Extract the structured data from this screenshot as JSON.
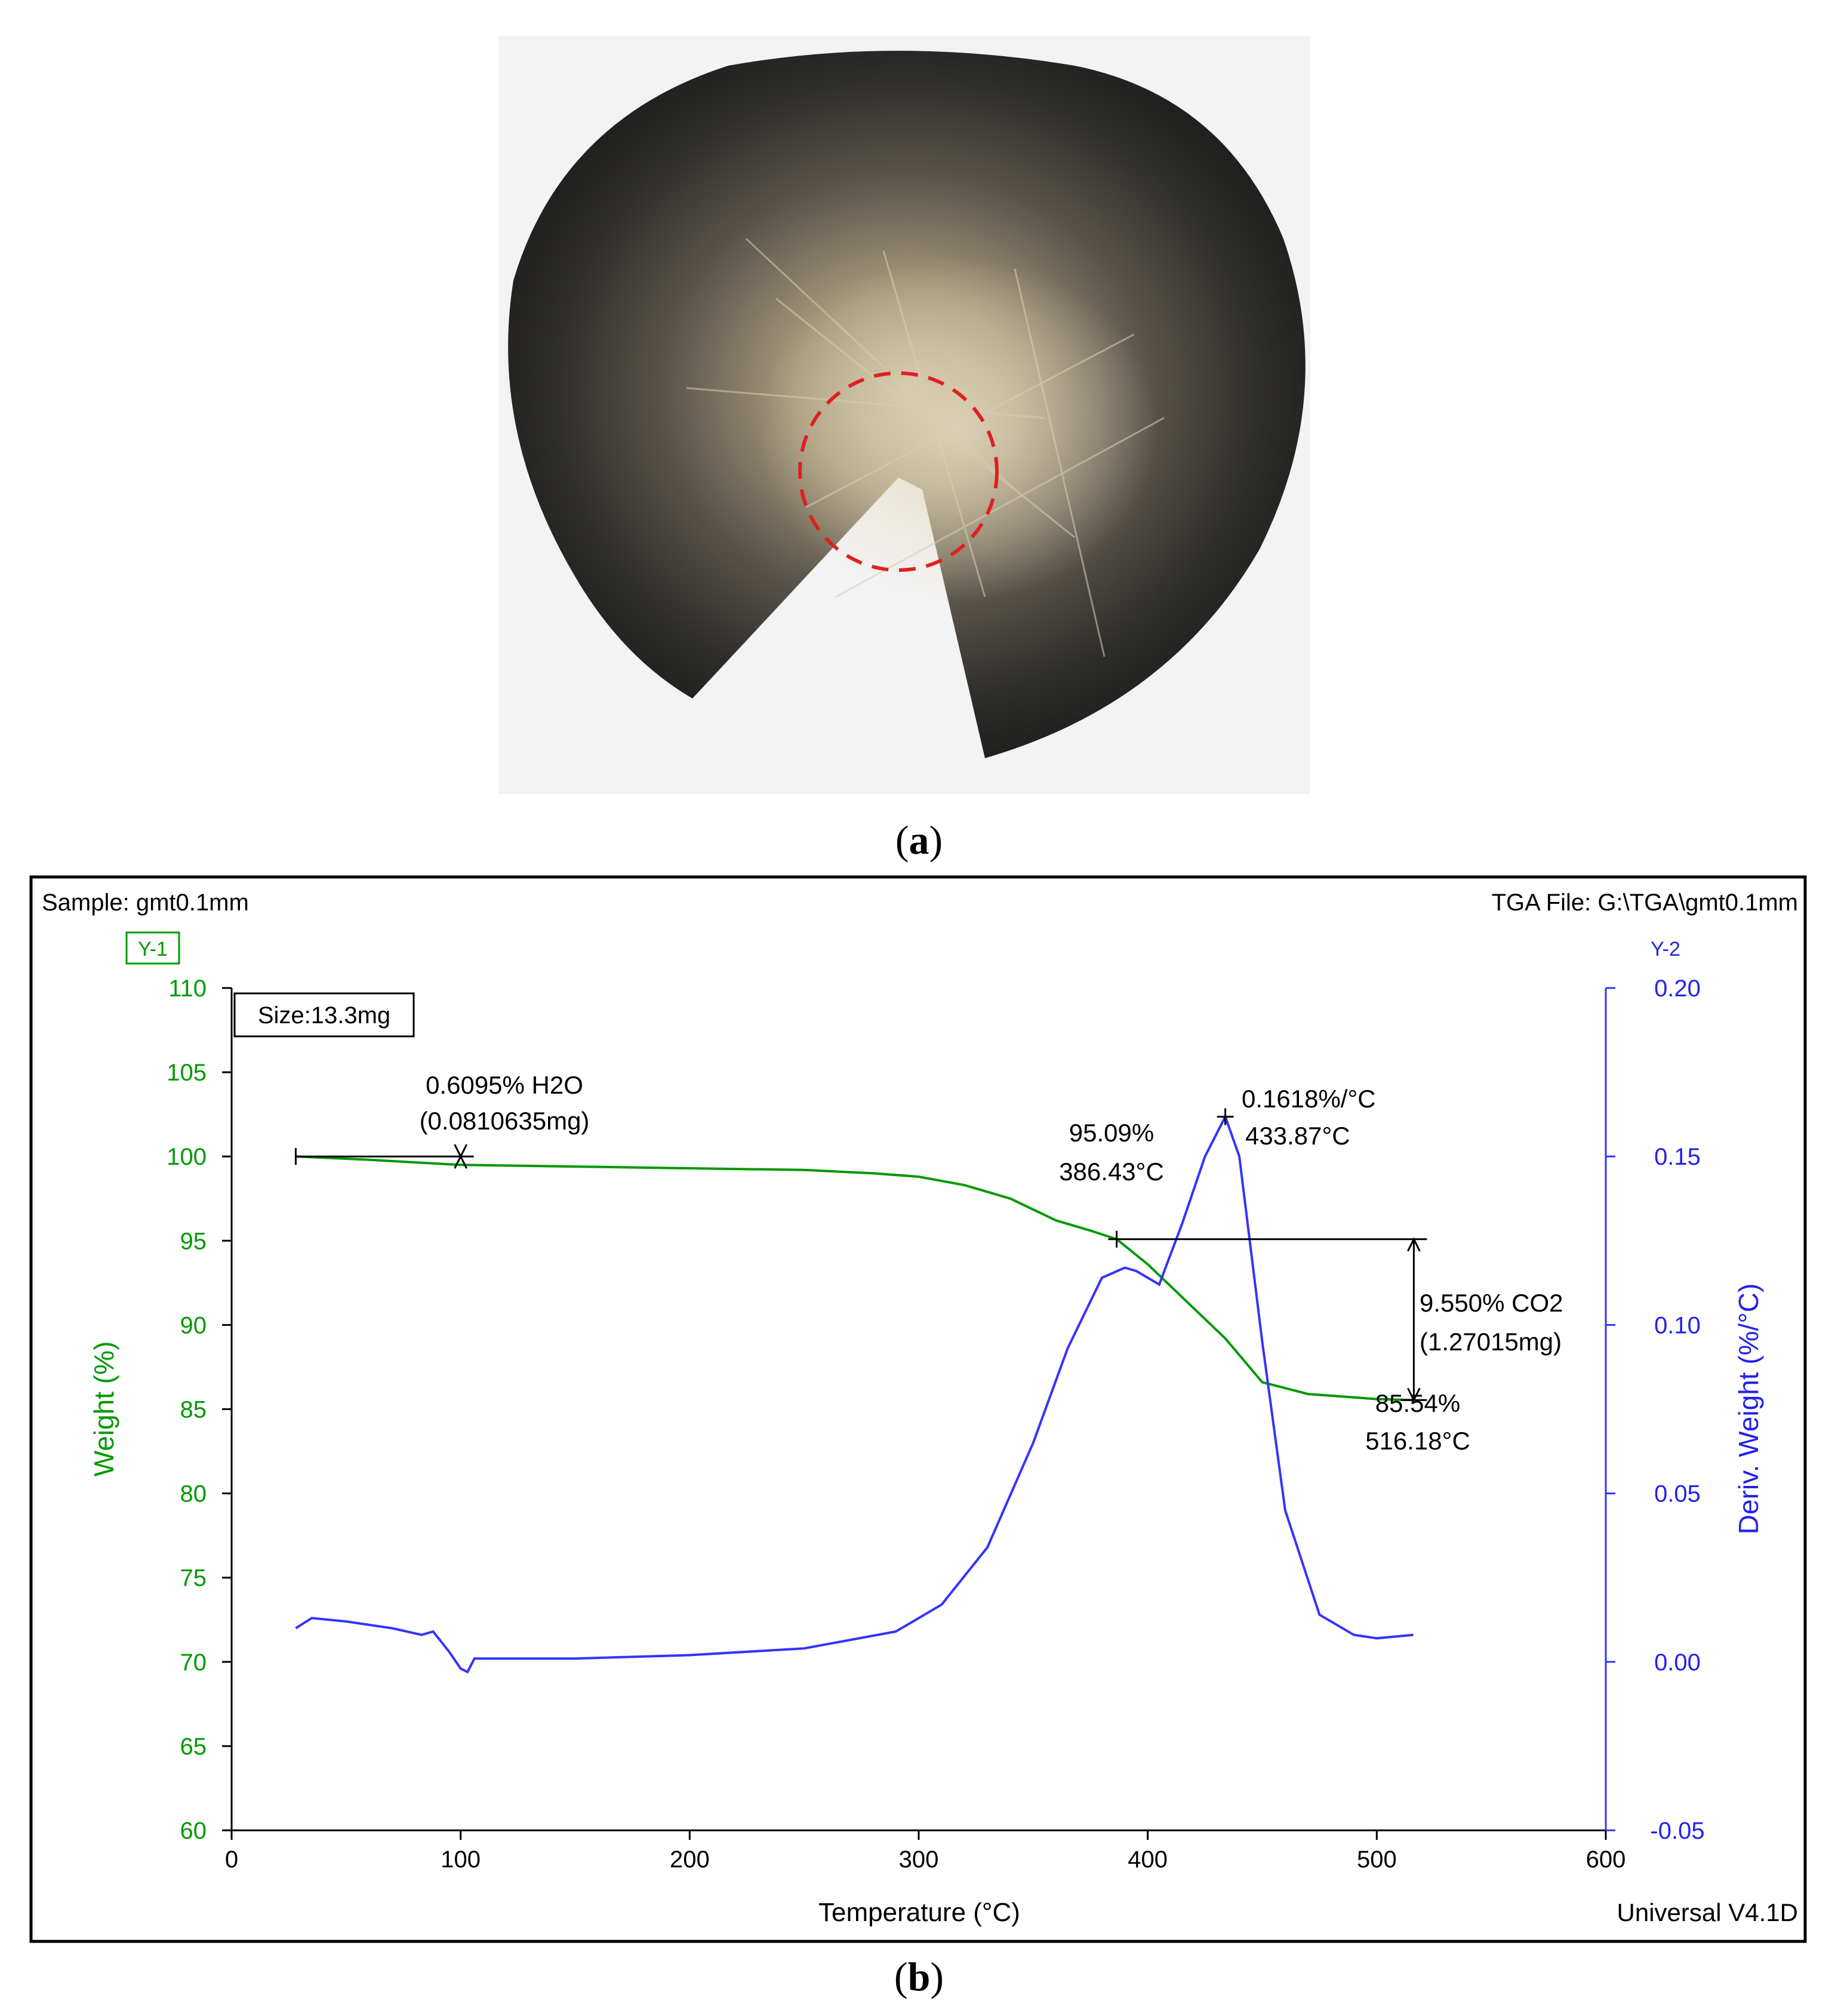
{
  "captions": {
    "a_open": "(",
    "a_letter": "a",
    "a_close": ")",
    "b_open": "(",
    "b_letter": "b",
    "b_close": ")"
  },
  "colors": {
    "weight": "#009900",
    "deriv": "#3333ff",
    "axis_text_green": "#009900",
    "axis_text_blue": "#2222ee",
    "frame": "#000000"
  },
  "chart_data": {
    "type": "line",
    "header_left": "Sample: gmt0.1mm",
    "header_right": "TGA File: G:\\TGA\\gmt0.1mm",
    "footer_right": "Universal V4.1D",
    "y1_tag": "Y-1",
    "y2_tag": "Y-2",
    "size_box": "Size:13.3mg",
    "xlabel": "Temperature (°C)",
    "ylabel": "Weight (%)",
    "y2label": "Deriv. Weight (%/°C)",
    "xlim": [
      0,
      600
    ],
    "ylim": [
      60,
      110
    ],
    "y2lim": [
      -0.05,
      0.2
    ],
    "xticks": [
      0,
      100,
      200,
      300,
      400,
      500,
      600
    ],
    "yticks": [
      60,
      65,
      70,
      75,
      80,
      85,
      90,
      95,
      100,
      105,
      110
    ],
    "y2ticks": [
      "-0.05",
      "0.00",
      "0.05",
      "0.10",
      "0.15",
      "0.20"
    ],
    "series": [
      {
        "axis": "y1",
        "x": [
          28,
          60,
          100,
          150,
          200,
          250,
          280,
          300,
          320,
          340,
          360,
          375,
          386.43,
          400,
          420,
          433.87,
          450,
          470,
          500,
          516.18
        ],
        "y": [
          100.0,
          99.8,
          99.5,
          99.4,
          99.3,
          99.2,
          99.0,
          98.8,
          98.3,
          97.5,
          96.2,
          95.6,
          95.09,
          93.6,
          91.0,
          89.2,
          86.6,
          85.9,
          85.6,
          85.54
        ]
      },
      {
        "axis": "y2",
        "x": [
          28,
          35,
          50,
          70,
          83,
          88,
          95,
          100,
          103,
          106,
          120,
          150,
          200,
          250,
          290,
          310,
          330,
          350,
          365,
          380,
          390,
          395,
          405,
          415,
          425,
          433.87,
          440,
          450,
          460,
          475,
          490,
          500,
          516
        ],
        "y": [
          0.01,
          0.013,
          0.012,
          0.01,
          0.008,
          0.009,
          0.003,
          -0.002,
          -0.003,
          0.001,
          0.001,
          0.001,
          0.002,
          0.004,
          0.009,
          0.017,
          0.034,
          0.065,
          0.093,
          0.114,
          0.117,
          0.116,
          0.112,
          0.13,
          0.15,
          0.1618,
          0.15,
          0.095,
          0.045,
          0.014,
          0.008,
          0.007,
          0.008
        ]
      }
    ],
    "annotations": {
      "h2o_line1": "0.6095% H2O",
      "h2o_line2": "(0.0810635mg)",
      "onset_pct": "95.09%",
      "onset_temp": "386.43°C",
      "peak_val": "0.1618%/°C",
      "peak_temp": "433.87°C",
      "co2_line1": "9.550% CO2",
      "co2_line2": "(1.27015mg)",
      "end_pct": "85.54%",
      "end_temp": "516.18°C"
    }
  }
}
